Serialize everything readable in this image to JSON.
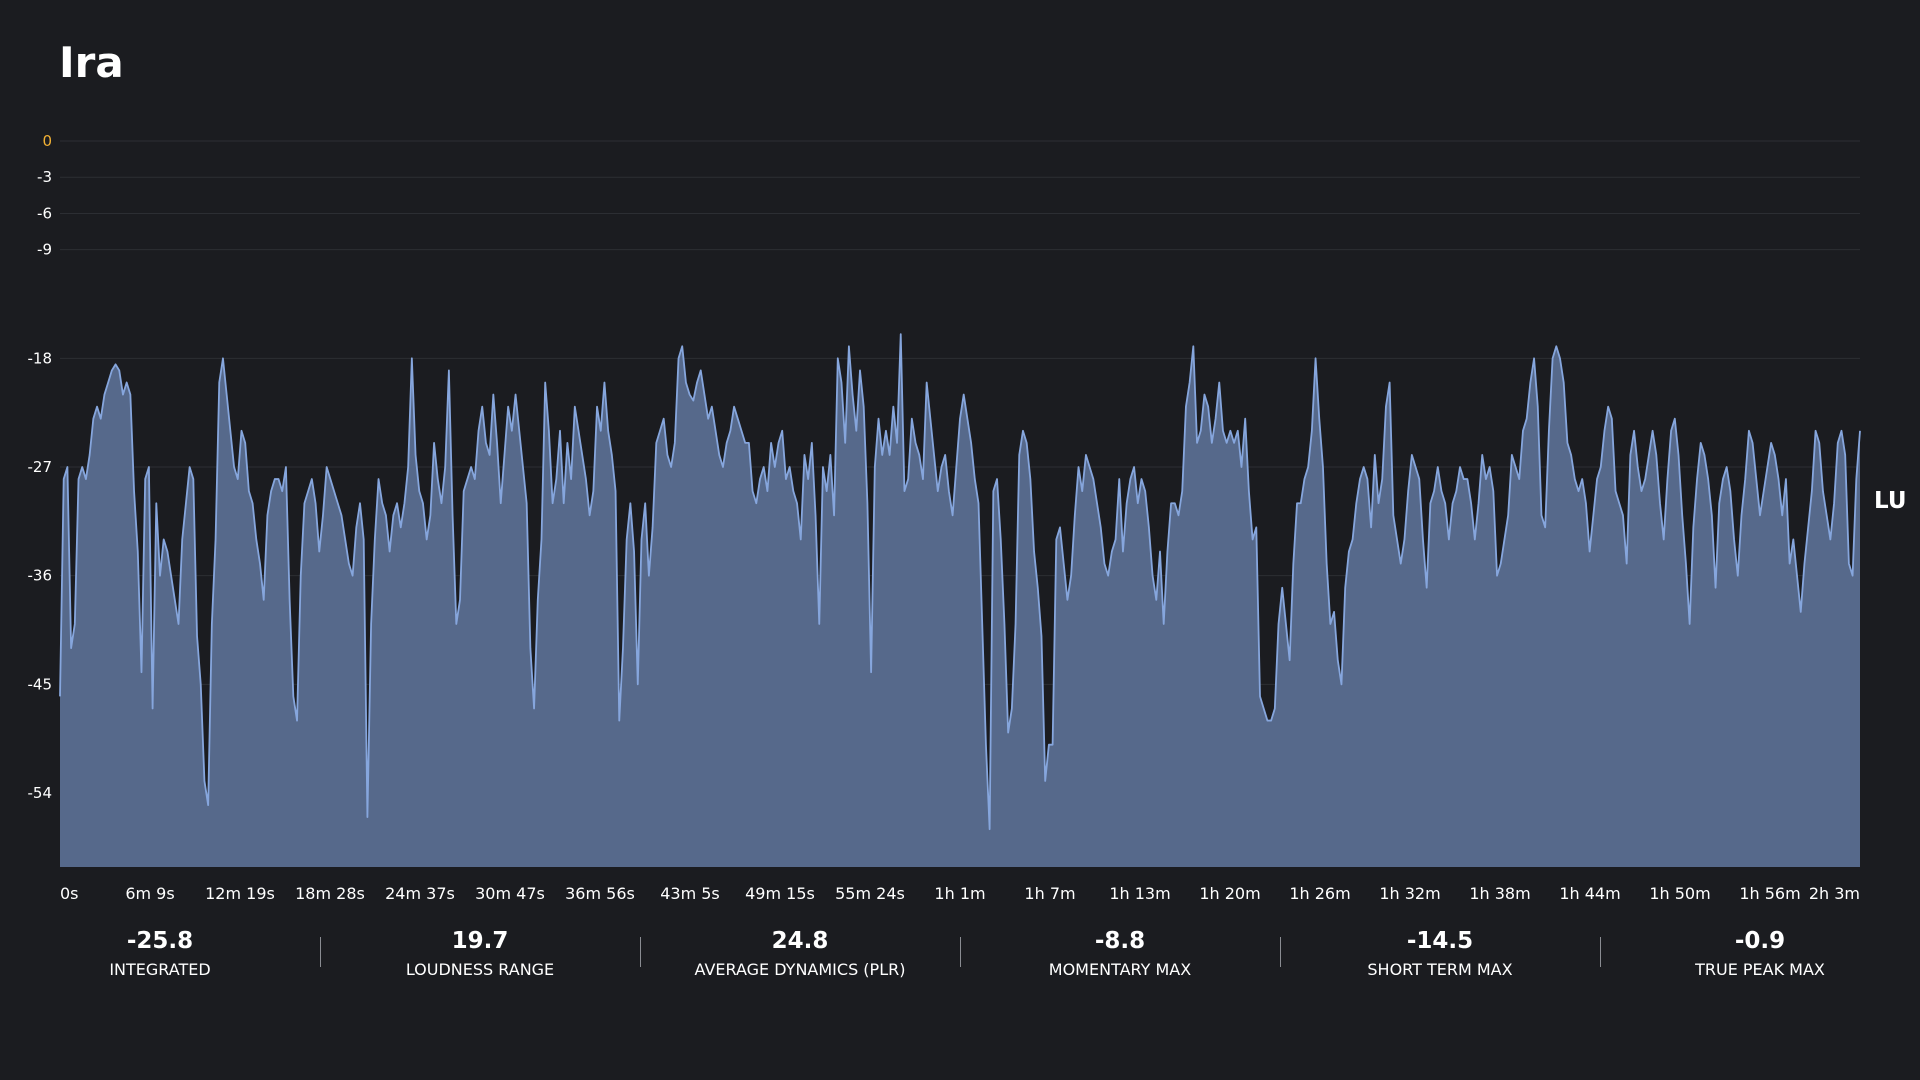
{
  "title": "Ira",
  "unit_label": "LU",
  "colors": {
    "background": "#1b1c20",
    "area_fill": "#56698b",
    "line": "#86a6dd",
    "grid": "#2c2e33",
    "zero_tick": "#f2b134",
    "text": "#ffffff"
  },
  "stats": [
    {
      "value": "-25.8",
      "label": "INTEGRATED"
    },
    {
      "value": "19.7",
      "label": "LOUDNESS RANGE"
    },
    {
      "value": "24.8",
      "label": "AVERAGE DYNAMICS (PLR)"
    },
    {
      "value": "-8.8",
      "label": "MOMENTARY MAX"
    },
    {
      "value": "-14.5",
      "label": "SHORT TERM MAX"
    },
    {
      "value": "-0.9",
      "label": "TRUE PEAK MAX"
    }
  ],
  "chart_data": {
    "type": "area",
    "ylabel": "LU",
    "ylim": [
      -60,
      0
    ],
    "y_ticks": [
      0,
      -3,
      -6,
      -9,
      -18,
      -27,
      -36,
      -45,
      -54
    ],
    "x_tick_labels": [
      "0s",
      "6m 9s",
      "12m 19s",
      "18m 28s",
      "24m 37s",
      "30m 47s",
      "36m 56s",
      "43m 5s",
      "49m 15s",
      "55m 24s",
      "1h 1m",
      "1h 7m",
      "1h 13m",
      "1h 20m",
      "1h 26m",
      "1h 32m",
      "1h 38m",
      "1h 44m",
      "1h 50m",
      "1h 56m",
      "2h 3m"
    ],
    "grid": true,
    "values": [
      -46,
      -28,
      -27,
      -42,
      -40,
      -28,
      -27,
      -28,
      -26,
      -23,
      -22,
      -23,
      -21,
      -20,
      -19,
      -18.5,
      -19,
      -21,
      -20,
      -21,
      -29,
      -34,
      -44,
      -28,
      -27,
      -47,
      -30,
      -36,
      -33,
      -34,
      -36,
      -38,
      -40,
      -33,
      -30,
      -27,
      -28,
      -41,
      -45,
      -53,
      -55,
      -40,
      -33,
      -20,
      -18,
      -21,
      -24,
      -27,
      -28,
      -24,
      -25,
      -29,
      -30,
      -33,
      -35,
      -38,
      -31,
      -29,
      -28,
      -28,
      -29,
      -27,
      -38,
      -46,
      -48,
      -36,
      -30,
      -29,
      -28,
      -30,
      -34,
      -31,
      -27,
      -28,
      -29,
      -30,
      -31,
      -33,
      -35,
      -36,
      -32,
      -30,
      -33,
      -56,
      -40,
      -33,
      -28,
      -30,
      -31,
      -34,
      -31,
      -30,
      -32,
      -30,
      -27,
      -18,
      -26,
      -29,
      -30,
      -33,
      -31,
      -25,
      -28,
      -30,
      -27,
      -19,
      -31,
      -40,
      -38,
      -29,
      -28,
      -27,
      -28,
      -24,
      -22,
      -25,
      -26,
      -21,
      -25,
      -30,
      -26,
      -22,
      -24,
      -21,
      -24,
      -27,
      -30,
      -42,
      -47,
      -38,
      -33,
      -20,
      -24,
      -30,
      -28,
      -24,
      -30,
      -25,
      -28,
      -22,
      -24,
      -26,
      -28,
      -31,
      -29,
      -22,
      -24,
      -20,
      -24,
      -26,
      -29,
      -48,
      -42,
      -33,
      -30,
      -34,
      -45,
      -33,
      -30,
      -36,
      -32,
      -25,
      -24,
      -23,
      -26,
      -27,
      -25,
      -18,
      -17,
      -20,
      -21,
      -21.5,
      -20,
      -19,
      -21,
      -23,
      -22,
      -24,
      -26,
      -27,
      -25,
      -24,
      -22,
      -23,
      -24,
      -25,
      -25,
      -29,
      -30,
      -28,
      -27,
      -29,
      -25,
      -27,
      -25,
      -24,
      -28,
      -27,
      -29,
      -30,
      -33,
      -26,
      -28,
      -25,
      -31,
      -40,
      -27,
      -29,
      -26,
      -31,
      -18,
      -20,
      -25,
      -17,
      -21,
      -24,
      -19,
      -22,
      -30,
      -44,
      -27,
      -23,
      -26,
      -24,
      -26,
      -22,
      -25,
      -16,
      -29,
      -28,
      -23,
      -25,
      -26,
      -28,
      -20,
      -23,
      -26,
      -29,
      -27,
      -26,
      -29,
      -31,
      -27,
      -23,
      -21,
      -23,
      -25,
      -28,
      -30,
      -40,
      -50,
      -57,
      -29,
      -28,
      -33,
      -40,
      -49,
      -47,
      -40,
      -26,
      -24,
      -25,
      -28,
      -34,
      -37,
      -41,
      -53,
      -50,
      -50,
      -33,
      -32,
      -35,
      -38,
      -36,
      -31,
      -27,
      -29,
      -26,
      -27,
      -28,
      -30,
      -32,
      -35,
      -36,
      -34,
      -33,
      -28,
      -34,
      -30,
      -28,
      -27,
      -30,
      -28,
      -29,
      -32,
      -36,
      -38,
      -34,
      -40,
      -34,
      -30,
      -30,
      -31,
      -29,
      -22,
      -20,
      -17,
      -25,
      -24,
      -21,
      -22,
      -25,
      -23,
      -20,
      -24,
      -25,
      -24,
      -25,
      -24,
      -27,
      -23,
      -29,
      -33,
      -32,
      -46,
      -47,
      -48,
      -48,
      -47,
      -40,
      -37,
      -40,
      -43,
      -35,
      -30,
      -30,
      -28,
      -27,
      -24,
      -18,
      -23,
      -27,
      -35,
      -40,
      -39,
      -43,
      -45,
      -37,
      -34,
      -33,
      -30,
      -28,
      -27,
      -28,
      -32,
      -26,
      -30,
      -28,
      -22,
      -20,
      -31,
      -33,
      -35,
      -33,
      -29,
      -26,
      -27,
      -28,
      -33,
      -37,
      -30,
      -29,
      -27,
      -29,
      -30,
      -33,
      -30,
      -29,
      -27,
      -28,
      -28,
      -30,
      -33,
      -30,
      -26,
      -28,
      -27,
      -29,
      -36,
      -35,
      -33,
      -31,
      -26,
      -27,
      -28,
      -24,
      -23,
      -20,
      -18,
      -22,
      -31,
      -32,
      -24,
      -18,
      -17,
      -18,
      -20,
      -25,
      -26,
      -28,
      -29,
      -28,
      -30,
      -34,
      -31,
      -28,
      -27,
      -24,
      -22,
      -23,
      -29,
      -30,
      -31,
      -35,
      -26,
      -24,
      -27,
      -29,
      -28,
      -26,
      -24,
      -26,
      -30,
      -33,
      -28,
      -24,
      -23,
      -26,
      -31,
      -35,
      -40,
      -32,
      -28,
      -25,
      -26,
      -28,
      -31,
      -37,
      -30,
      -28,
      -27,
      -29,
      -33,
      -36,
      -31,
      -28,
      -24,
      -25,
      -28,
      -31,
      -29,
      -27,
      -25,
      -26,
      -28,
      -31,
      -28,
      -35,
      -33,
      -36,
      -39,
      -35,
      -32,
      -29,
      -24,
      -25,
      -29,
      -31,
      -33,
      -30,
      -25,
      -24,
      -26,
      -35,
      -36,
      -28,
      -24
    ]
  }
}
